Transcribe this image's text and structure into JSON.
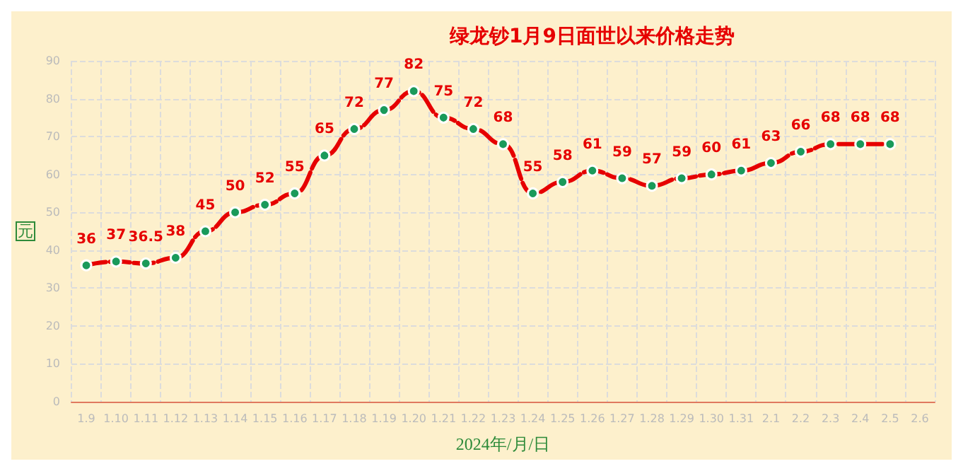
{
  "chart_data": {
    "type": "line",
    "title": "绿龙钞1月9日面世以来价格走势",
    "xlabel": "2024年/月/日",
    "ylabel": "元",
    "categories": [
      "1.9",
      "1.10",
      "1.11",
      "1.12",
      "1.13",
      "1.14",
      "1.15",
      "1.16",
      "1.17",
      "1.18",
      "1.19",
      "1.20",
      "1.21",
      "1.22",
      "1.23",
      "1.24",
      "1.25",
      "1.26",
      "1.27",
      "1.28",
      "1.29",
      "1.30",
      "1.31",
      "2.1",
      "2.2",
      "2.3",
      "2.4",
      "2.5",
      "2.6"
    ],
    "series": [
      {
        "color": "#e60000",
        "values": [
          36,
          37,
          36.5,
          38,
          45,
          50,
          52,
          55,
          65,
          72,
          77,
          82,
          75,
          72,
          68,
          55,
          58,
          61,
          59,
          57,
          59,
          60,
          61,
          63,
          66,
          68,
          68,
          68,
          null
        ]
      }
    ],
    "ylim": [
      0,
      90
    ],
    "yticks": [
      0,
      10,
      20,
      30,
      40,
      50,
      60,
      70,
      80,
      90
    ],
    "grid": true,
    "marker": "circle",
    "line_style": "dashed",
    "data_labels": true
  }
}
